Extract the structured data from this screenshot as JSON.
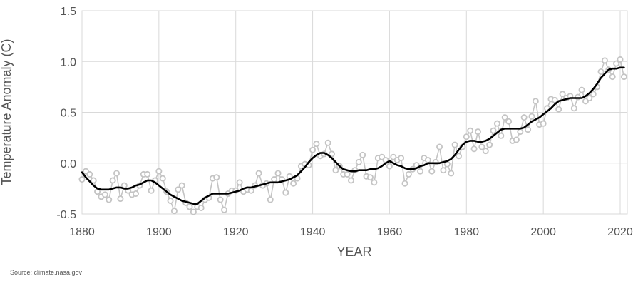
{
  "source": "Source: climate.nasa.gov",
  "chart_data": {
    "type": "line",
    "xlabel": "YEAR",
    "ylabel": "Temperature Anomaly (C)",
    "xlim": [
      1880,
      2022
    ],
    "ylim": [
      -0.5,
      1.5
    ],
    "x_ticks": [
      "1880",
      "1900",
      "1920",
      "1940",
      "1960",
      "1980",
      "2000",
      "2020"
    ],
    "y_ticks": [
      "-0.5",
      "0.0",
      "0.5",
      "1.0",
      "1.5"
    ],
    "grid": true,
    "colors": {
      "annual": "#c4c4c4",
      "smooth": "#000000",
      "grid": "#d9d9d9",
      "axis": "#555555"
    },
    "x": [
      1880,
      1881,
      1882,
      1883,
      1884,
      1885,
      1886,
      1887,
      1888,
      1889,
      1890,
      1891,
      1892,
      1893,
      1894,
      1895,
      1896,
      1897,
      1898,
      1899,
      1900,
      1901,
      1902,
      1903,
      1904,
      1905,
      1906,
      1907,
      1908,
      1909,
      1910,
      1911,
      1912,
      1913,
      1914,
      1915,
      1916,
      1917,
      1918,
      1919,
      1920,
      1921,
      1922,
      1923,
      1924,
      1925,
      1926,
      1927,
      1928,
      1929,
      1930,
      1931,
      1932,
      1933,
      1934,
      1935,
      1936,
      1937,
      1938,
      1939,
      1940,
      1941,
      1942,
      1943,
      1944,
      1945,
      1946,
      1947,
      1948,
      1949,
      1950,
      1951,
      1952,
      1953,
      1954,
      1955,
      1956,
      1957,
      1958,
      1959,
      1960,
      1961,
      1962,
      1963,
      1964,
      1965,
      1966,
      1967,
      1968,
      1969,
      1970,
      1971,
      1972,
      1973,
      1974,
      1975,
      1976,
      1977,
      1978,
      1979,
      1980,
      1981,
      1982,
      1983,
      1984,
      1985,
      1986,
      1987,
      1988,
      1989,
      1990,
      1991,
      1992,
      1993,
      1994,
      1995,
      1996,
      1997,
      1998,
      1999,
      2000,
      2001,
      2002,
      2003,
      2004,
      2005,
      2006,
      2007,
      2008,
      2009,
      2010,
      2011,
      2012,
      2013,
      2014,
      2015,
      2016,
      2017,
      2018,
      2019,
      2020,
      2021
    ],
    "series": [
      {
        "role": "annual",
        "values": [
          -0.16,
          -0.08,
          -0.11,
          -0.17,
          -0.28,
          -0.33,
          -0.31,
          -0.36,
          -0.17,
          -0.1,
          -0.35,
          -0.22,
          -0.27,
          -0.31,
          -0.3,
          -0.22,
          -0.11,
          -0.11,
          -0.27,
          -0.17,
          -0.08,
          -0.15,
          -0.28,
          -0.37,
          -0.47,
          -0.26,
          -0.22,
          -0.39,
          -0.43,
          -0.48,
          -0.43,
          -0.44,
          -0.36,
          -0.34,
          -0.15,
          -0.14,
          -0.36,
          -0.46,
          -0.3,
          -0.27,
          -0.27,
          -0.19,
          -0.28,
          -0.26,
          -0.27,
          -0.22,
          -0.1,
          -0.22,
          -0.2,
          -0.36,
          -0.16,
          -0.1,
          -0.16,
          -0.29,
          -0.13,
          -0.2,
          -0.15,
          -0.03,
          -0.01,
          -0.02,
          0.13,
          0.19,
          0.07,
          0.09,
          0.2,
          0.09,
          -0.07,
          -0.03,
          -0.11,
          -0.11,
          -0.17,
          -0.07,
          0.01,
          0.08,
          -0.13,
          -0.14,
          -0.19,
          0.05,
          0.06,
          0.03,
          -0.03,
          0.06,
          0.03,
          0.05,
          -0.2,
          -0.11,
          -0.06,
          -0.02,
          -0.08,
          0.05,
          0.03,
          -0.08,
          0.01,
          0.16,
          -0.07,
          -0.01,
          -0.1,
          0.18,
          0.07,
          0.16,
          0.26,
          0.32,
          0.14,
          0.31,
          0.16,
          0.12,
          0.18,
          0.32,
          0.39,
          0.27,
          0.45,
          0.41,
          0.22,
          0.23,
          0.31,
          0.45,
          0.33,
          0.46,
          0.61,
          0.38,
          0.39,
          0.54,
          0.63,
          0.62,
          0.53,
          0.68,
          0.64,
          0.66,
          0.54,
          0.65,
          0.72,
          0.61,
          0.64,
          0.68,
          0.75,
          0.9,
          1.01,
          0.92,
          0.85,
          0.98,
          1.02,
          0.85
        ]
      },
      {
        "role": "smoothed",
        "values": [
          -0.09,
          -0.14,
          -0.18,
          -0.22,
          -0.25,
          -0.26,
          -0.26,
          -0.26,
          -0.25,
          -0.24,
          -0.24,
          -0.25,
          -0.25,
          -0.24,
          -0.22,
          -0.21,
          -0.19,
          -0.17,
          -0.17,
          -0.19,
          -0.22,
          -0.25,
          -0.28,
          -0.31,
          -0.33,
          -0.35,
          -0.37,
          -0.38,
          -0.39,
          -0.4,
          -0.4,
          -0.37,
          -0.34,
          -0.32,
          -0.3,
          -0.3,
          -0.3,
          -0.3,
          -0.3,
          -0.29,
          -0.28,
          -0.27,
          -0.25,
          -0.24,
          -0.24,
          -0.23,
          -0.22,
          -0.21,
          -0.2,
          -0.19,
          -0.19,
          -0.19,
          -0.18,
          -0.17,
          -0.16,
          -0.14,
          -0.12,
          -0.08,
          -0.04,
          0.01,
          0.05,
          0.08,
          0.1,
          0.1,
          0.08,
          0.05,
          0.01,
          -0.03,
          -0.06,
          -0.07,
          -0.08,
          -0.08,
          -0.07,
          -0.07,
          -0.07,
          -0.06,
          -0.06,
          -0.05,
          -0.03,
          0.0,
          0.02,
          0.0,
          -0.02,
          -0.03,
          -0.05,
          -0.06,
          -0.06,
          -0.05,
          -0.03,
          -0.02,
          0.0,
          0.0,
          0.0,
          0.0,
          0.01,
          0.02,
          0.04,
          0.08,
          0.13,
          0.18,
          0.21,
          0.22,
          0.22,
          0.21,
          0.21,
          0.22,
          0.24,
          0.27,
          0.3,
          0.33,
          0.34,
          0.34,
          0.34,
          0.34,
          0.34,
          0.35,
          0.38,
          0.41,
          0.43,
          0.45,
          0.48,
          0.51,
          0.54,
          0.58,
          0.61,
          0.62,
          0.63,
          0.64,
          0.64,
          0.64,
          0.64,
          0.66,
          0.69,
          0.73,
          0.78,
          0.84,
          0.88,
          0.92,
          0.93,
          0.93,
          0.94,
          0.94
        ]
      }
    ]
  }
}
